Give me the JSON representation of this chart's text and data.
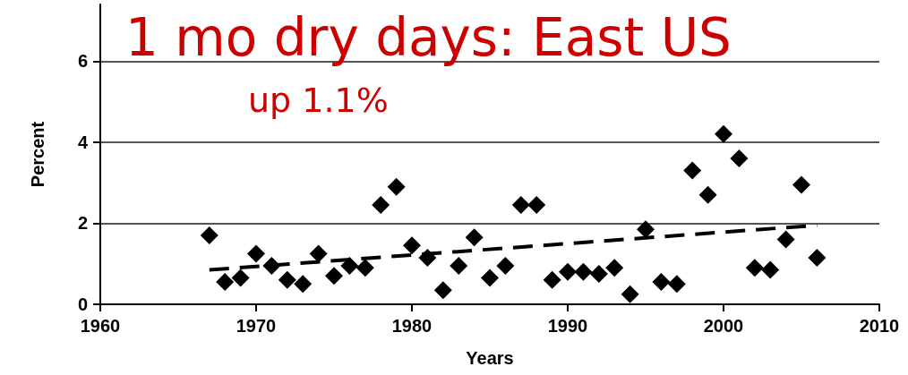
{
  "chart_data": {
    "type": "scatter",
    "title": "1 mo dry days: East US",
    "subtitle": "up 1.1%",
    "xlabel": "Years",
    "ylabel": "Percent",
    "x": [
      1967,
      1968,
      1969,
      1970,
      1971,
      1972,
      1973,
      1974,
      1975,
      1976,
      1977,
      1978,
      1979,
      1980,
      1981,
      1982,
      1983,
      1984,
      1985,
      1986,
      1987,
      1988,
      1989,
      1990,
      1991,
      1992,
      1993,
      1994,
      1995,
      1996,
      1997,
      1998,
      1999,
      2000,
      2001,
      2002,
      2003,
      2004,
      2005,
      2006
    ],
    "series": [
      {
        "color": "#000000",
        "marker": "diamond",
        "values": [
          1.7,
          0.55,
          0.65,
          1.25,
          0.95,
          0.6,
          0.5,
          1.25,
          0.7,
          0.95,
          0.9,
          2.45,
          2.9,
          1.45,
          1.15,
          0.35,
          0.95,
          1.65,
          0.65,
          0.95,
          2.45,
          2.45,
          0.6,
          0.8,
          0.8,
          0.75,
          0.9,
          0.25,
          1.85,
          0.55,
          0.5,
          3.3,
          2.7,
          4.2,
          3.6,
          0.9,
          0.85,
          1.6,
          2.95,
          1.15
        ]
      },
      {
        "type": "line",
        "color": "#000000",
        "line_style": "dashed",
        "marker": "none",
        "x": [
          1967,
          2006
        ],
        "values": [
          0.85,
          1.95
        ]
      }
    ],
    "xlim": [
      1960,
      2010
    ],
    "xticks": [
      1960,
      1970,
      1980,
      1990,
      2000,
      2010
    ],
    "ylim": [
      0,
      7.4
    ],
    "yticks": [
      0,
      2,
      4,
      6
    ],
    "grid": "y"
  }
}
